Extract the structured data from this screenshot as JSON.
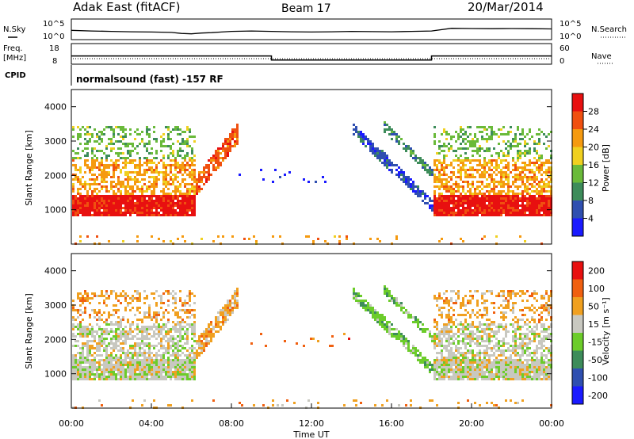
{
  "header": {
    "radar_title": "Adak East (fitACF)",
    "beam": "Beam 17",
    "date": "20/Mar/2014"
  },
  "chart_data": [
    {
      "type": "line",
      "panel": "noise",
      "left_label": "N.Sky",
      "right_label": "N.Search",
      "left_ticks": [
        "10^5",
        "10^0"
      ],
      "right_ticks": [
        "10^5",
        "10^0"
      ],
      "x_hours": [
        0,
        1,
        2,
        3,
        4,
        5,
        5.5,
        6,
        6.5,
        7,
        7.5,
        8,
        9,
        10,
        11,
        12,
        13,
        14,
        15,
        16,
        17,
        18,
        19,
        20,
        21,
        22,
        23,
        24
      ],
      "y_frac": [
        0.55,
        0.58,
        0.6,
        0.62,
        0.63,
        0.65,
        0.7,
        0.72,
        0.68,
        0.66,
        0.63,
        0.6,
        0.58,
        0.6,
        0.62,
        0.63,
        0.62,
        0.6,
        0.61,
        0.62,
        0.6,
        0.58,
        0.45,
        0.46,
        0.47,
        0.46,
        0.47,
        0.48
      ]
    },
    {
      "type": "line",
      "panel": "frequency",
      "left_label_1": "Freq.",
      "left_label_2": "[MHz]",
      "right_label": "Nave",
      "left_ticks": [
        "18",
        "8"
      ],
      "right_ticks": [
        "60",
        "0"
      ],
      "steps": [
        {
          "x": 0,
          "y": 12
        },
        {
          "x": 10,
          "y": 10
        },
        {
          "x": 18,
          "y": 12
        },
        {
          "x": 24,
          "y": 12
        }
      ],
      "ylim": [
        8,
        18
      ]
    },
    {
      "type": "heatmap",
      "panel": "cpid",
      "label": "CPID",
      "text": "normalsound (fast) -157 RF"
    },
    {
      "type": "heatmap",
      "panel": "power",
      "ylabel": "Slant Range [km]",
      "ylim": [
        0,
        4500
      ],
      "yticks": [
        "1000",
        "2000",
        "3000",
        "4000"
      ],
      "colorbar": {
        "label": "Power [dB]",
        "ticks": [
          "4",
          "8",
          "12",
          "16",
          "20",
          "24",
          "28"
        ],
        "colors": [
          "#1a1aff",
          "#2f4fb0",
          "#3d8c5a",
          "#6aba3a",
          "#f0d020",
          "#f59a10",
          "#f05010",
          "#e81010"
        ]
      }
    },
    {
      "type": "heatmap",
      "panel": "velocity",
      "ylabel": "Slant Range [km]",
      "xlabel": "Time UT",
      "ylim": [
        0,
        4500
      ],
      "yticks": [
        "1000",
        "2000",
        "3000",
        "4000"
      ],
      "xticks": [
        "00:00",
        "04:00",
        "08:00",
        "12:00",
        "16:00",
        "20:00",
        "00:00"
      ],
      "xlim": [
        0,
        24
      ],
      "colorbar": {
        "label": "Velocity [m s⁻¹]",
        "ticks": [
          "200",
          "100",
          "50",
          "15",
          "-15",
          "-50",
          "-100",
          "-200"
        ],
        "colors": [
          "#1a1aff",
          "#2f4fb0",
          "#3d8c5a",
          "#6ccc2a",
          "#c8c8c0",
          "#f0a020",
          "#f06010",
          "#e81010"
        ]
      }
    }
  ]
}
